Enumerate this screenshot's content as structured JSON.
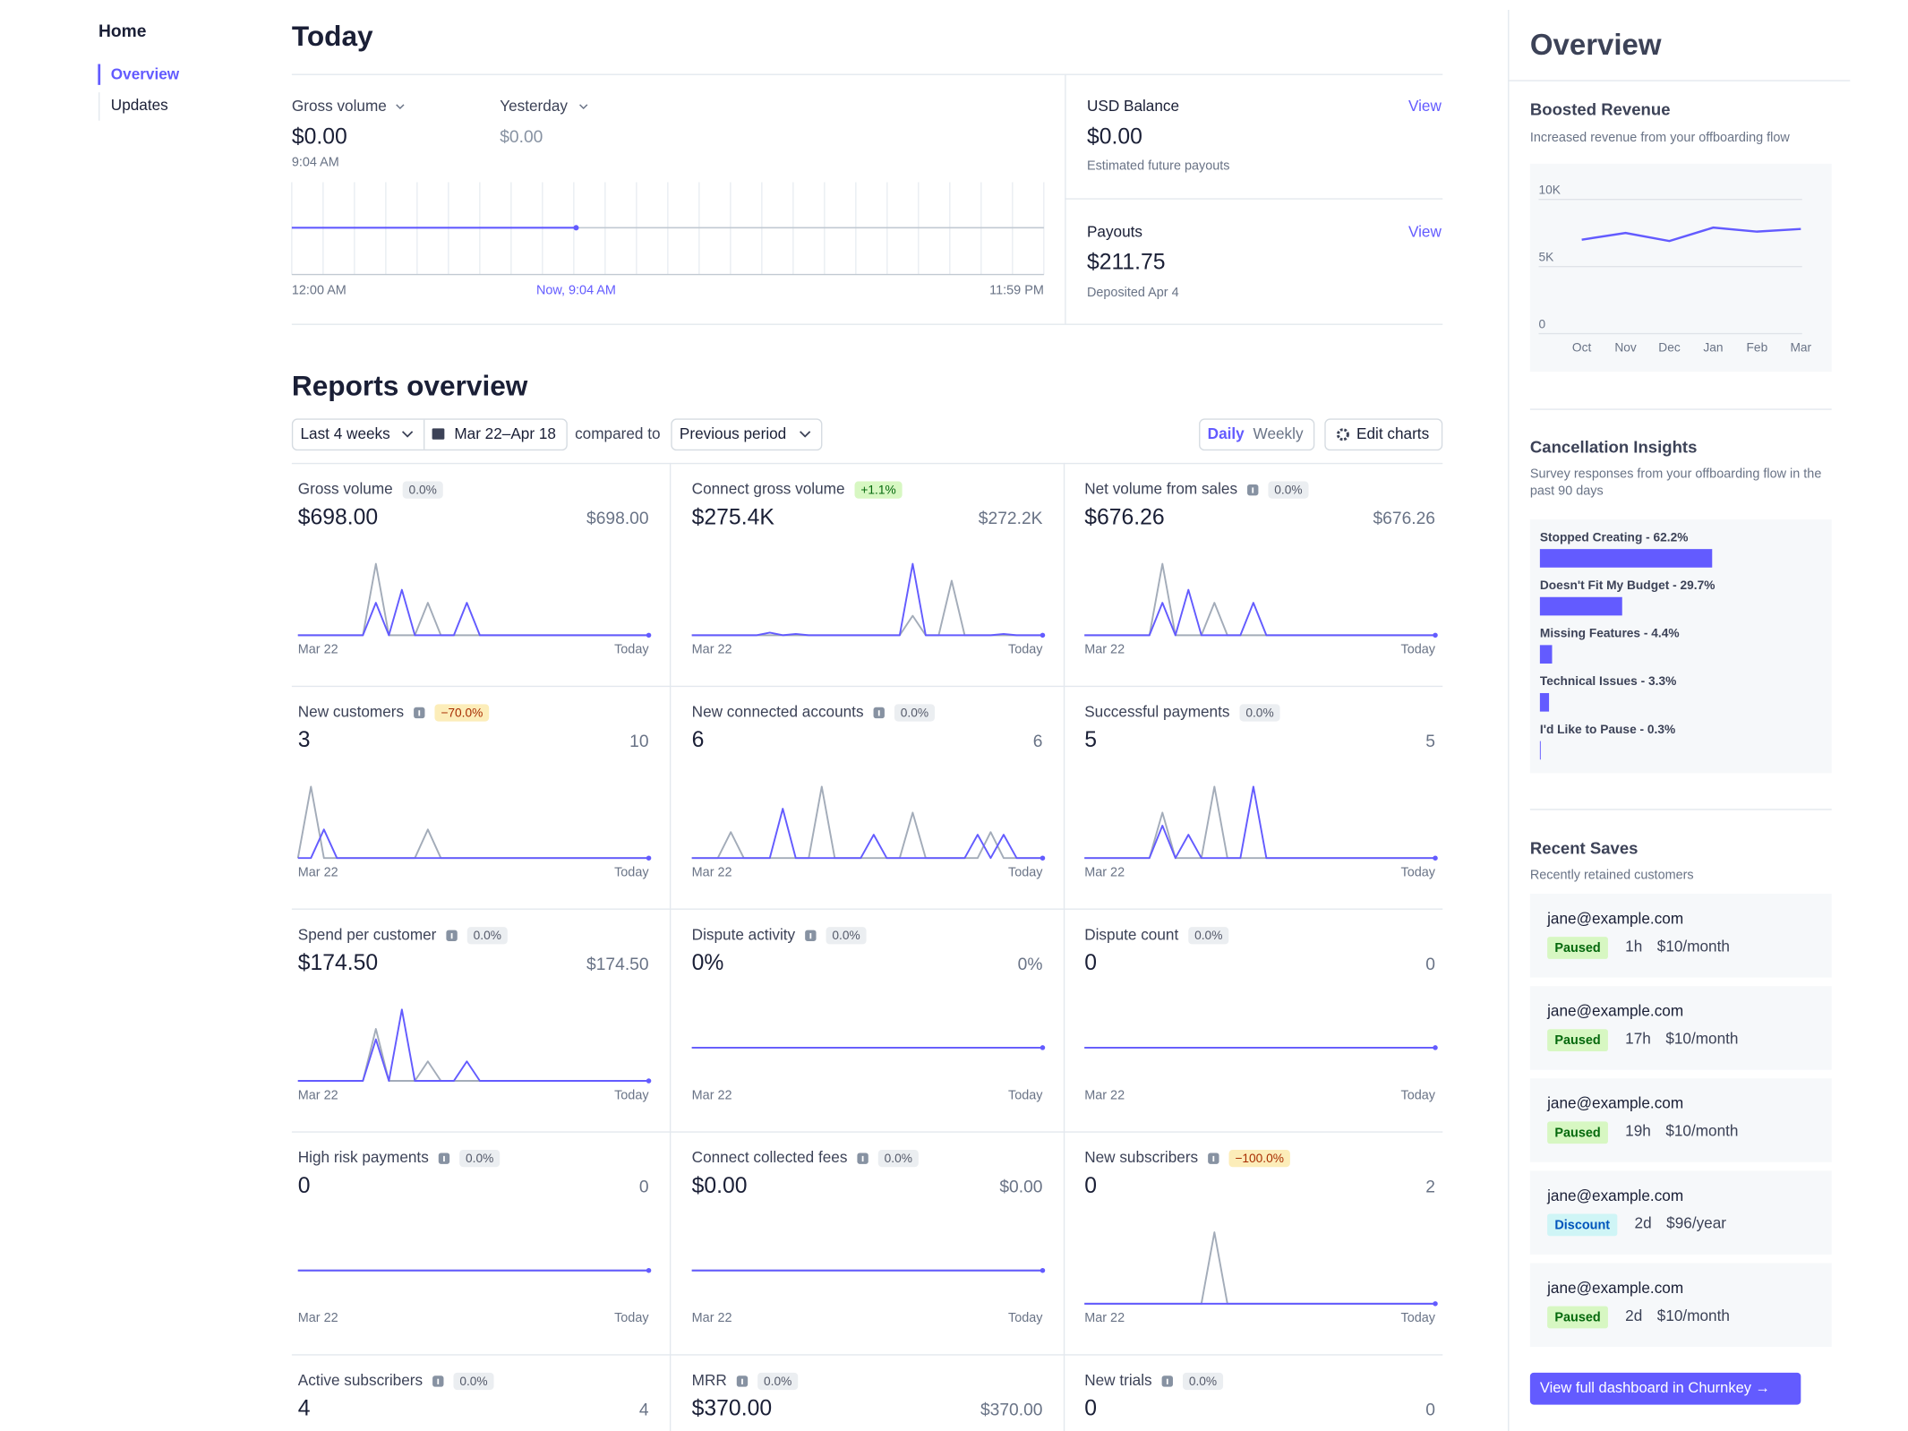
{
  "sidebar": {
    "title": "Home",
    "items": [
      "Overview",
      "Updates"
    ]
  },
  "today": {
    "title": "Today",
    "gross": {
      "label": "Gross volume",
      "value": "$0.00",
      "time": "9:04 AM"
    },
    "yesterday": {
      "label": "Yesterday",
      "value": "$0.00"
    },
    "chart": {
      "start": "12:00 AM",
      "now": "Now, 9:04 AM",
      "end": "11:59 PM"
    },
    "balance": {
      "label": "USD Balance",
      "action": "View",
      "value": "$0.00",
      "note": "Estimated future payouts"
    },
    "payouts": {
      "label": "Payouts",
      "action": "View",
      "value": "$211.75",
      "note": "Deposited Apr 4"
    }
  },
  "reports": {
    "title": "Reports overview",
    "range": "Last 4 weeks",
    "dates": "Mar 22–Apr 18",
    "compared": "compared to",
    "period": "Previous period",
    "daily": "Daily",
    "weekly": "Weekly",
    "edit": "Edit charts",
    "axis": [
      "Mar 22",
      "Today"
    ],
    "current_color": "#635bff",
    "prior_color": "#a3acb9",
    "cards": [
      {
        "label": "Gross volume",
        "info": false,
        "badge": "0.0%",
        "value": "$698.00",
        "previous": "$698.00",
        "current": [
          0,
          0,
          0,
          0,
          0,
          0,
          25,
          0,
          35,
          0,
          0,
          0,
          0,
          25,
          0,
          0,
          0,
          0,
          0,
          0,
          0,
          0,
          0,
          0,
          0,
          0,
          0,
          0
        ],
        "prior": [
          0,
          0,
          0,
          0,
          0,
          0,
          55,
          0,
          0,
          0,
          25,
          0,
          0,
          0,
          0,
          0,
          0,
          0,
          0,
          0,
          0,
          0,
          0,
          0,
          0,
          0,
          0,
          0
        ]
      },
      {
        "label": "Connect gross volume",
        "info": false,
        "badge": "+1.1%",
        "value": "$275.4K",
        "previous": "$272.2K",
        "current": [
          0,
          0,
          0,
          0,
          0,
          0,
          2,
          0,
          1,
          0,
          0,
          0,
          0,
          0,
          0,
          0,
          0,
          55,
          0,
          0,
          0,
          0,
          0,
          0,
          1,
          0,
          0,
          0
        ],
        "prior": [
          0,
          0,
          0,
          0,
          0,
          0,
          0,
          0,
          0,
          0,
          0,
          0,
          0,
          0,
          0,
          0,
          0,
          15,
          0,
          0,
          42,
          0,
          0,
          0,
          0,
          0,
          0,
          0
        ]
      },
      {
        "label": "Net volume from sales",
        "info": true,
        "badge": "0.0%",
        "value": "$676.26",
        "previous": "$676.26",
        "current": [
          0,
          0,
          0,
          0,
          0,
          0,
          25,
          0,
          35,
          0,
          0,
          0,
          0,
          25,
          0,
          0,
          0,
          0,
          0,
          0,
          0,
          0,
          0,
          0,
          0,
          0,
          0,
          0
        ],
        "prior": [
          0,
          0,
          0,
          0,
          0,
          0,
          55,
          0,
          0,
          0,
          25,
          0,
          0,
          0,
          0,
          0,
          0,
          0,
          0,
          0,
          0,
          0,
          0,
          0,
          0,
          0,
          0,
          0
        ]
      },
      {
        "label": "New customers",
        "info": true,
        "badge": "−70.0%",
        "value": "3",
        "previous": "10",
        "current": [
          0,
          0,
          22,
          0,
          0,
          0,
          0,
          0,
          0,
          0,
          0,
          0,
          0,
          0,
          0,
          0,
          0,
          0,
          0,
          0,
          0,
          0,
          0,
          0,
          0,
          0,
          0,
          0
        ],
        "prior": [
          0,
          55,
          0,
          0,
          0,
          0,
          0,
          0,
          0,
          0,
          22,
          0,
          0,
          0,
          0,
          0,
          0,
          0,
          0,
          0,
          0,
          0,
          0,
          0,
          0,
          0,
          0,
          0
        ]
      },
      {
        "label": "New connected accounts",
        "info": true,
        "badge": "0.0%",
        "value": "6",
        "previous": "6",
        "current": [
          0,
          0,
          0,
          0,
          0,
          0,
          0,
          38,
          0,
          0,
          0,
          0,
          0,
          0,
          18,
          0,
          0,
          0,
          0,
          0,
          0,
          0,
          18,
          0,
          18,
          0,
          0,
          0
        ],
        "prior": [
          0,
          0,
          0,
          20,
          0,
          0,
          0,
          0,
          0,
          0,
          55,
          0,
          0,
          0,
          0,
          0,
          0,
          35,
          0,
          0,
          0,
          0,
          0,
          20,
          0,
          0,
          0,
          0
        ]
      },
      {
        "label": "Successful payments",
        "info": false,
        "badge": "0.0%",
        "value": "5",
        "previous": "5",
        "current": [
          0,
          0,
          0,
          0,
          0,
          0,
          25,
          0,
          18,
          0,
          0,
          0,
          0,
          55,
          0,
          0,
          0,
          0,
          0,
          0,
          0,
          0,
          0,
          0,
          0,
          0,
          0,
          0
        ],
        "prior": [
          0,
          0,
          0,
          0,
          0,
          0,
          35,
          0,
          0,
          0,
          55,
          0,
          0,
          0,
          0,
          0,
          0,
          0,
          0,
          0,
          0,
          0,
          0,
          0,
          0,
          0,
          0,
          0
        ]
      },
      {
        "label": "Spend per customer",
        "info": true,
        "badge": "0.0%",
        "value": "$174.50",
        "previous": "$174.50",
        "current": [
          0,
          0,
          0,
          0,
          0,
          0,
          32,
          0,
          55,
          0,
          0,
          0,
          0,
          15,
          0,
          0,
          0,
          0,
          0,
          0,
          0,
          0,
          0,
          0,
          0,
          0,
          0,
          0
        ],
        "prior": [
          0,
          0,
          0,
          0,
          0,
          0,
          40,
          0,
          0,
          0,
          15,
          0,
          0,
          0,
          0,
          0,
          0,
          0,
          0,
          0,
          0,
          0,
          0,
          0,
          0,
          0,
          0,
          0
        ]
      },
      {
        "label": "Dispute activity",
        "info": true,
        "badge": "0.0%",
        "value": "0%",
        "previous": "0%",
        "current": [
          0,
          0,
          0,
          0,
          0,
          0,
          0,
          0,
          0,
          0,
          0,
          0,
          0,
          0,
          0,
          0,
          0,
          0,
          0,
          0,
          0,
          0,
          0,
          0,
          0,
          0,
          0,
          0
        ],
        "prior": [
          0,
          0,
          0,
          0,
          0,
          0,
          0,
          0,
          0,
          0,
          0,
          0,
          0,
          0,
          0,
          0,
          0,
          0,
          0,
          0,
          0,
          0,
          0,
          0,
          0,
          0,
          0,
          0
        ]
      },
      {
        "label": "Dispute count",
        "info": false,
        "badge": "0.0%",
        "value": "0",
        "previous": "0",
        "current": [
          0,
          0,
          0,
          0,
          0,
          0,
          0,
          0,
          0,
          0,
          0,
          0,
          0,
          0,
          0,
          0,
          0,
          0,
          0,
          0,
          0,
          0,
          0,
          0,
          0,
          0,
          0,
          0
        ],
        "prior": [
          0,
          0,
          0,
          0,
          0,
          0,
          0,
          0,
          0,
          0,
          0,
          0,
          0,
          0,
          0,
          0,
          0,
          0,
          0,
          0,
          0,
          0,
          0,
          0,
          0,
          0,
          0,
          0
        ]
      },
      {
        "label": "High risk payments",
        "info": true,
        "badge": "0.0%",
        "value": "0",
        "previous": "0",
        "current": [
          0,
          0,
          0,
          0,
          0,
          0,
          0,
          0,
          0,
          0,
          0,
          0,
          0,
          0,
          0,
          0,
          0,
          0,
          0,
          0,
          0,
          0,
          0,
          0,
          0,
          0,
          0,
          0
        ],
        "prior": [
          0,
          0,
          0,
          0,
          0,
          0,
          0,
          0,
          0,
          0,
          0,
          0,
          0,
          0,
          0,
          0,
          0,
          0,
          0,
          0,
          0,
          0,
          0,
          0,
          0,
          0,
          0,
          0
        ]
      },
      {
        "label": "Connect collected fees",
        "info": true,
        "badge": "0.0%",
        "value": "$0.00",
        "previous": "$0.00",
        "current": [
          0,
          0,
          0,
          0,
          0,
          0,
          0,
          0,
          0,
          0,
          0,
          0,
          0,
          0,
          0,
          0,
          0,
          0,
          0,
          0,
          0,
          0,
          0,
          0,
          0,
          0,
          0,
          0
        ],
        "prior": [
          0,
          0,
          0,
          0,
          0,
          0,
          0,
          0,
          0,
          0,
          0,
          0,
          0,
          0,
          0,
          0,
          0,
          0,
          0,
          0,
          0,
          0,
          0,
          0,
          0,
          0,
          0,
          0
        ]
      },
      {
        "label": "New subscribers",
        "info": true,
        "badge": "−100.0%",
        "value": "0",
        "previous": "2",
        "current": [
          0,
          0,
          0,
          0,
          0,
          0,
          0,
          0,
          0,
          0,
          0,
          0,
          0,
          0,
          0,
          0,
          0,
          0,
          0,
          0,
          0,
          0,
          0,
          0,
          0,
          0,
          0,
          0
        ],
        "prior": [
          0,
          0,
          0,
          0,
          0,
          0,
          0,
          0,
          0,
          0,
          55,
          0,
          0,
          0,
          0,
          0,
          0,
          0,
          0,
          0,
          0,
          0,
          0,
          0,
          0,
          0,
          0,
          0
        ]
      },
      {
        "label": "Active subscribers",
        "info": true,
        "badge": "0.0%",
        "value": "4",
        "previous": "4"
      },
      {
        "label": "MRR",
        "info": true,
        "badge": "0.0%",
        "value": "$370.00",
        "previous": "$370.00"
      },
      {
        "label": "New trials",
        "info": true,
        "badge": "0.0%",
        "value": "0",
        "previous": "0"
      }
    ]
  },
  "overview": {
    "title": "Overview",
    "boosted": {
      "title": "Boosted Revenue",
      "subtitle": "Increased revenue from your offboarding flow",
      "chart_data": {
        "type": "line",
        "categories": [
          "Oct",
          "Nov",
          "Dec",
          "Jan",
          "Feb",
          "Mar"
        ],
        "values": [
          7000,
          7500,
          6900,
          7900,
          7600,
          7800
        ],
        "color": "#635bff",
        "ylim": [
          0,
          10000
        ],
        "yticks": [
          0,
          {
            "value": 5000,
            "label": "5K"
          },
          {
            "value": 10000,
            "label": "10K"
          }
        ],
        "grid": true
      }
    },
    "cancellation": {
      "title": "Cancellation Insights",
      "subtitle": "Survey responses from your offboarding flow in the past 90 days",
      "color": "#635bff",
      "items": [
        {
          "label": "Stopped Creating - 62.2%",
          "value": 62.2
        },
        {
          "label": "Doesn't Fit My Budget - 29.7%",
          "value": 29.7
        },
        {
          "label": "Missing Features - 4.4%",
          "value": 4.4
        },
        {
          "label": "Technical Issues - 3.3%",
          "value": 3.3
        },
        {
          "label": "I'd Like to Pause - 0.3%",
          "value": 0.3
        }
      ]
    },
    "saves": {
      "title": "Recent Saves",
      "subtitle": "Recently retained customers",
      "items": [
        {
          "email": "jane@example.com",
          "status": "Paused",
          "age": "1h",
          "price": "$10/month",
          "bg": "#d7f7c2",
          "fg": "#05690d"
        },
        {
          "email": "jane@example.com",
          "status": "Paused",
          "age": "17h",
          "price": "$10/month",
          "bg": "#d7f7c2",
          "fg": "#05690d"
        },
        {
          "email": "jane@example.com",
          "status": "Paused",
          "age": "19h",
          "price": "$10/month",
          "bg": "#d7f7c2",
          "fg": "#05690d"
        },
        {
          "email": "jane@example.com",
          "status": "Discount",
          "age": "2d",
          "price": "$96/year",
          "bg": "#cff5f6",
          "fg": "#0055bc"
        },
        {
          "email": "jane@example.com",
          "status": "Paused",
          "age": "2d",
          "price": "$10/month",
          "bg": "#d7f7c2",
          "fg": "#05690d"
        }
      ]
    },
    "cta": "View full dashboard in Churnkey →"
  }
}
